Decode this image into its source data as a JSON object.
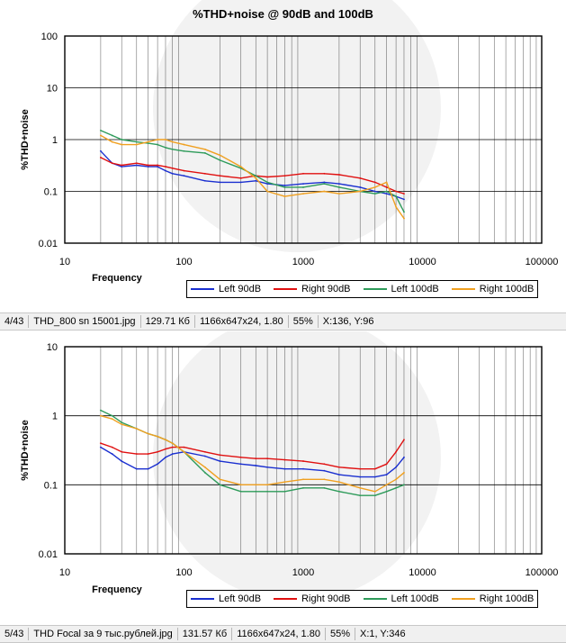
{
  "charts": [
    {
      "title": "%THD+noise @ 90dB and 100dB",
      "chart_data": {
        "type": "line",
        "title": "%THD+noise @ 90dB and 100dB",
        "xlabel": "Frequency",
        "ylabel": "%THD+noise",
        "xscale": "log",
        "yscale": "log",
        "xlim": [
          10,
          100000
        ],
        "ylim": [
          0.01,
          100
        ],
        "x_ticks": [
          "10",
          "100",
          "1000",
          "10000",
          "100000"
        ],
        "y_ticks": [
          "100",
          "10",
          "1",
          "0.1",
          "0.01"
        ],
        "grid": "vertical",
        "legend_position": "bottom",
        "series": [
          {
            "name": "Left 90dB",
            "color": "#1a2fd0",
            "x": [
              20,
              25,
              30,
              40,
              50,
              60,
              70,
              80,
              100,
              150,
              200,
              300,
              400,
              500,
              700,
              1000,
              1500,
              2000,
              3000,
              4000,
              5000,
              6000,
              7000
            ],
            "y": [
              0.6,
              0.35,
              0.3,
              0.32,
              0.3,
              0.3,
              0.25,
              0.22,
              0.2,
              0.16,
              0.15,
              0.15,
              0.16,
              0.14,
              0.13,
              0.14,
              0.15,
              0.14,
              0.12,
              0.1,
              0.09,
              0.08,
              0.07
            ]
          },
          {
            "name": "Right 90dB",
            "color": "#e01010",
            "x": [
              20,
              25,
              30,
              40,
              50,
              60,
              70,
              80,
              100,
              150,
              200,
              300,
              400,
              500,
              700,
              1000,
              1500,
              2000,
              3000,
              4000,
              5000,
              6000,
              7000
            ],
            "y": [
              0.45,
              0.35,
              0.32,
              0.35,
              0.32,
              0.32,
              0.3,
              0.28,
              0.25,
              0.22,
              0.2,
              0.18,
              0.2,
              0.19,
              0.2,
              0.22,
              0.22,
              0.21,
              0.18,
              0.15,
              0.12,
              0.1,
              0.09
            ]
          },
          {
            "name": "Left 100dB",
            "color": "#2e9b5a",
            "x": [
              20,
              25,
              30,
              40,
              50,
              60,
              70,
              80,
              100,
              150,
              200,
              300,
              400,
              500,
              700,
              1000,
              1500,
              2000,
              3000,
              4000,
              5000,
              6000,
              7000
            ],
            "y": [
              1.5,
              1.2,
              1.0,
              0.9,
              0.85,
              0.8,
              0.7,
              0.65,
              0.6,
              0.55,
              0.4,
              0.28,
              0.2,
              0.15,
              0.12,
              0.12,
              0.14,
              0.12,
              0.1,
              0.09,
              0.1,
              0.08,
              0.04
            ]
          },
          {
            "name": "Right 100dB",
            "color": "#f0a020",
            "x": [
              20,
              25,
              30,
              40,
              50,
              60,
              70,
              80,
              100,
              150,
              200,
              300,
              400,
              500,
              700,
              1000,
              1500,
              2000,
              3000,
              4000,
              5000,
              6000,
              7000
            ],
            "y": [
              1.2,
              0.9,
              0.8,
              0.8,
              0.9,
              1.0,
              1.0,
              0.9,
              0.8,
              0.65,
              0.5,
              0.3,
              0.18,
              0.1,
              0.08,
              0.09,
              0.1,
              0.09,
              0.1,
              0.12,
              0.15,
              0.05,
              0.03
            ]
          }
        ]
      }
    },
    {
      "title": "",
      "chart_data": {
        "type": "line",
        "title": "",
        "xlabel": "Frequency",
        "ylabel": "%THD+noise",
        "xscale": "log",
        "yscale": "log",
        "xlim": [
          10,
          100000
        ],
        "ylim": [
          0.01,
          10
        ],
        "x_ticks": [
          "10",
          "100",
          "1000",
          "10000",
          "100000"
        ],
        "y_ticks": [
          "10",
          "1",
          "0.1",
          "0.01"
        ],
        "grid": "vertical",
        "legend_position": "bottom",
        "series": [
          {
            "name": "Left 90dB",
            "color": "#1a2fd0",
            "x": [
              20,
              25,
              30,
              40,
              50,
              60,
              70,
              80,
              100,
              150,
              200,
              300,
              400,
              500,
              700,
              1000,
              1500,
              2000,
              3000,
              4000,
              5000,
              6000,
              7000
            ],
            "y": [
              0.35,
              0.28,
              0.22,
              0.17,
              0.17,
              0.2,
              0.25,
              0.28,
              0.3,
              0.26,
              0.22,
              0.2,
              0.19,
              0.18,
              0.17,
              0.17,
              0.16,
              0.14,
              0.13,
              0.13,
              0.14,
              0.18,
              0.25
            ]
          },
          {
            "name": "Right 90dB",
            "color": "#e01010",
            "x": [
              20,
              25,
              30,
              40,
              50,
              60,
              70,
              80,
              100,
              150,
              200,
              300,
              400,
              500,
              700,
              1000,
              1500,
              2000,
              3000,
              4000,
              5000,
              6000,
              7000
            ],
            "y": [
              0.4,
              0.35,
              0.3,
              0.28,
              0.28,
              0.3,
              0.33,
              0.35,
              0.35,
              0.3,
              0.27,
              0.25,
              0.24,
              0.24,
              0.23,
              0.22,
              0.2,
              0.18,
              0.17,
              0.17,
              0.2,
              0.3,
              0.45
            ]
          },
          {
            "name": "Left 100dB",
            "color": "#2e9b5a",
            "x": [
              20,
              25,
              30,
              40,
              50,
              60,
              70,
              80,
              100,
              150,
              200,
              300,
              400,
              500,
              700,
              1000,
              1500,
              2000,
              3000,
              4000,
              5000,
              6000,
              7000
            ],
            "y": [
              1.2,
              1.0,
              0.8,
              0.65,
              0.55,
              0.5,
              0.45,
              0.4,
              0.3,
              0.15,
              0.1,
              0.08,
              0.08,
              0.08,
              0.08,
              0.09,
              0.09,
              0.08,
              0.07,
              0.07,
              0.08,
              0.09,
              0.1
            ]
          },
          {
            "name": "Right 100dB",
            "color": "#f0a020",
            "x": [
              20,
              25,
              30,
              40,
              50,
              60,
              70,
              80,
              100,
              150,
              200,
              300,
              400,
              500,
              700,
              1000,
              1500,
              2000,
              3000,
              4000,
              5000,
              6000,
              7000
            ],
            "y": [
              1.0,
              0.9,
              0.75,
              0.65,
              0.55,
              0.5,
              0.45,
              0.4,
              0.3,
              0.18,
              0.12,
              0.1,
              0.1,
              0.1,
              0.11,
              0.12,
              0.12,
              0.11,
              0.09,
              0.08,
              0.1,
              0.12,
              0.15
            ]
          }
        ]
      }
    }
  ],
  "status_bars": [
    {
      "index": "4/43",
      "filename": "THD_800 sn 15001.jpg",
      "filesize": "129.71 Кб",
      "dims": "1166x647x24, 1.80",
      "zoom": "55%",
      "cursor": "X:136, Y:96"
    },
    {
      "index": "5/43",
      "filename": "THD Focal за 9 тыс.рублей.jpg",
      "filesize": "131.57 Кб",
      "dims": "1166x647x24, 1.80",
      "zoom": "55%",
      "cursor": "X:1, Y:346"
    }
  ]
}
